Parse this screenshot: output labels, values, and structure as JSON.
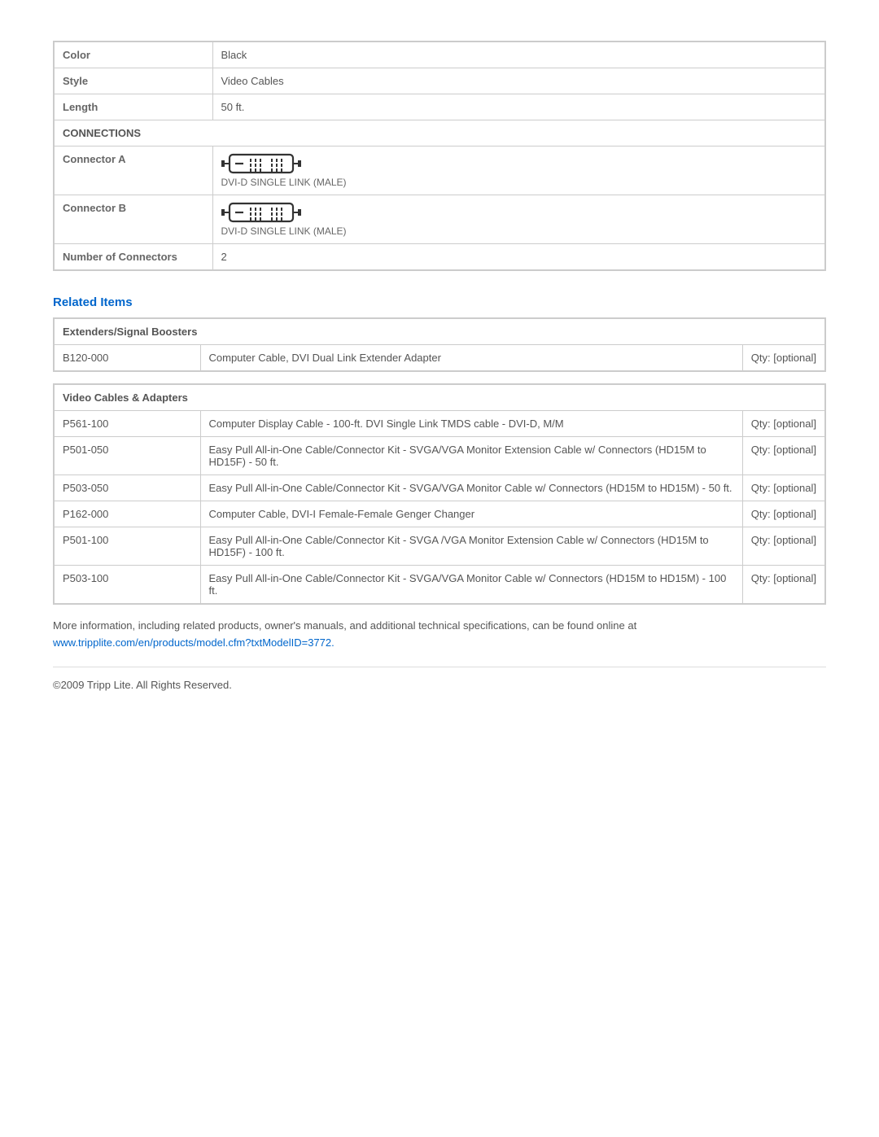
{
  "specs": {
    "rows": [
      {
        "label": "Color",
        "value": "Black"
      },
      {
        "label": "Style",
        "value": "Video Cables"
      },
      {
        "label": "Length",
        "value": "50 ft."
      }
    ],
    "connections_header": "CONNECTIONS",
    "connector_a_label": "Connector A",
    "connector_a_caption": "DVI-D SINGLE LINK (MALE)",
    "connector_b_label": "Connector B",
    "connector_b_caption": "DVI-D SINGLE LINK (MALE)",
    "num_connectors_label": "Number of Connectors",
    "num_connectors_value": "2"
  },
  "related_heading": "Related Items",
  "related_groups": [
    {
      "title": "Extenders/Signal Boosters",
      "items": [
        {
          "sku": "B120-000",
          "desc": "Computer Cable, DVI Dual Link Extender Adapter",
          "qty": "Qty: [optional]"
        }
      ]
    },
    {
      "title": "Video Cables & Adapters",
      "items": [
        {
          "sku": "P561-100",
          "desc": "Computer Display Cable - 100-ft. DVI Single Link TMDS cable - DVI-D, M/M",
          "qty": "Qty: [optional]"
        },
        {
          "sku": "P501-050",
          "desc": "Easy Pull All-in-One Cable/Connector Kit - SVGA/VGA Monitor Extension Cable w/ Connectors (HD15M to HD15F) - 50 ft.",
          "qty": "Qty: [optional]"
        },
        {
          "sku": "P503-050",
          "desc": "Easy Pull All-in-One Cable/Connector Kit - SVGA/VGA Monitor Cable w/ Connectors (HD15M to HD15M) - 50 ft.",
          "qty": "Qty: [optional]"
        },
        {
          "sku": "P162-000",
          "desc": "Computer Cable, DVI-I Female-Female Genger Changer",
          "qty": "Qty: [optional]"
        },
        {
          "sku": "P501-100",
          "desc": "Easy Pull All-in-One Cable/Connector Kit - SVGA /VGA Monitor Extension Cable w/ Connectors (HD15M to HD15F) - 100 ft.",
          "qty": "Qty: [optional]"
        },
        {
          "sku": "P503-100",
          "desc": "Easy Pull All-in-One Cable/Connector Kit - SVGA/VGA Monitor Cable w/ Connectors (HD15M to HD15M) - 100 ft.",
          "qty": "Qty: [optional]"
        }
      ]
    }
  ],
  "info_text": "More information, including related products, owner's manuals, and additional technical specifications, can be found online at",
  "info_link": "www.tripplite.com/en/products/model.cfm?txtModelID=3772.",
  "copyright": "©2009 Tripp Lite.  All Rights Reserved."
}
